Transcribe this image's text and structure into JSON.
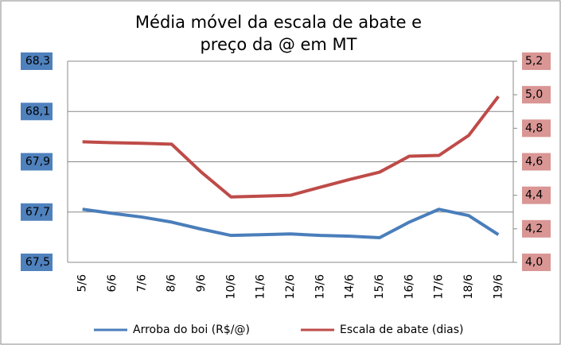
{
  "chart_data": {
    "type": "line",
    "title": "Média móvel da escala de abate e preço da @ em MT",
    "categories": [
      "5/6",
      "6/6",
      "7/6",
      "8/6",
      "9/6",
      "10/6",
      "11/6",
      "12/6",
      "13/6",
      "14/6",
      "15/6",
      "16/6",
      "17/6",
      "18/6",
      "19/6"
    ],
    "series": [
      {
        "name": "Arroba do boi (R$/@)",
        "color": "#4a7ebb",
        "values": [
          67.711,
          67.695,
          67.68,
          67.66,
          67.632,
          67.607,
          67.61,
          67.613,
          67.607,
          67.604,
          67.598,
          67.66,
          67.711,
          67.686,
          67.61
        ]
      },
      {
        "name": "Escala de abate (dias)",
        "color": "#be4b48",
        "axis": "y2",
        "values": [
          4.719,
          4.714,
          4.71,
          4.705,
          4.538,
          4.39,
          4.395,
          4.4,
          4.448,
          4.495,
          4.538,
          4.633,
          4.638,
          4.757,
          4.99
        ]
      }
    ],
    "ylim": [
      67.5,
      68.3
    ],
    "yticks": [
      {
        "value": 67.5,
        "label": "67,5"
      },
      {
        "value": 67.7,
        "label": "67,7"
      },
      {
        "value": 67.9,
        "label": "67,9"
      },
      {
        "value": 68.1,
        "label": "68,1"
      },
      {
        "value": 68.3,
        "label": "68,3"
      }
    ],
    "y2lim": [
      4.0,
      5.2
    ],
    "y2ticks": [
      {
        "value": 4.0,
        "label": "4,0"
      },
      {
        "value": 4.2,
        "label": "4,2"
      },
      {
        "value": 4.4,
        "label": "4,4"
      },
      {
        "value": 4.6,
        "label": "4,6"
      },
      {
        "value": 4.8,
        "label": "4,8"
      },
      {
        "value": 5.0,
        "label": "5,0"
      },
      {
        "value": 5.2,
        "label": "5,2"
      }
    ],
    "grid": true,
    "legend": "bottom"
  }
}
